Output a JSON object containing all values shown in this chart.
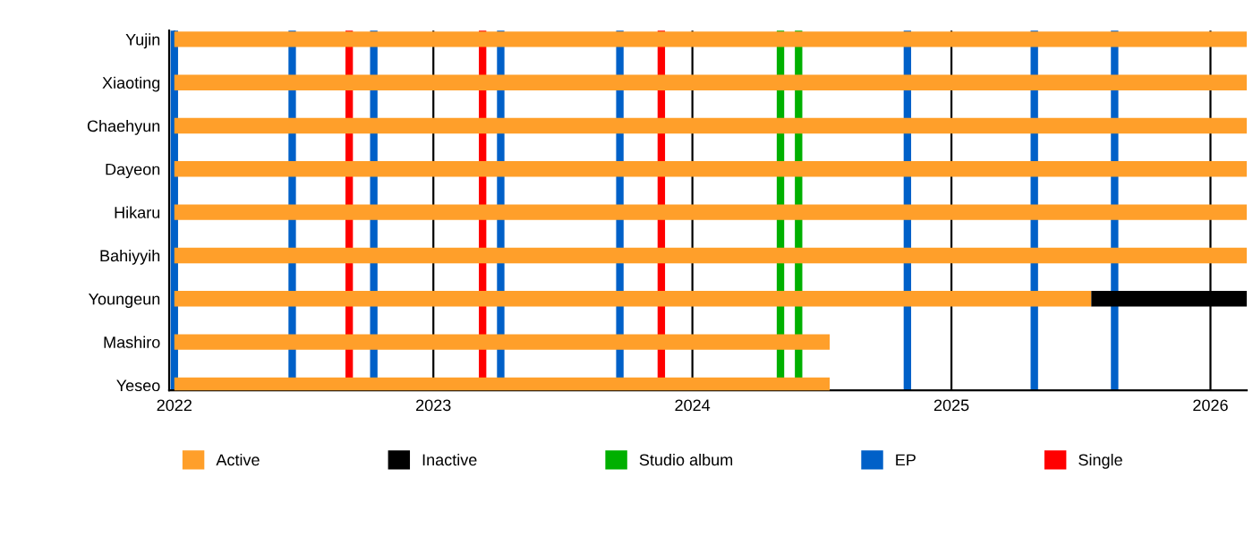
{
  "chart_data": {
    "type": "bar",
    "orientation": "horizontal",
    "categories": [
      "Yujin",
      "Xiaoting",
      "Chaehyun",
      "Dayeon",
      "Hikaru",
      "Bahiyyih",
      "Youngeun",
      "Mashiro",
      "Yeseo"
    ],
    "series": [
      {
        "name": "Active",
        "color": "#ff9f2a",
        "base": [
          2022.0,
          2022.0,
          2022.0,
          2022.0,
          2022.0,
          2022.0,
          2022.0,
          2022.0,
          2022.0
        ],
        "values": [
          4.14,
          4.14,
          4.14,
          4.14,
          4.14,
          4.14,
          3.54,
          2.53,
          2.53
        ]
      },
      {
        "name": "Inactive",
        "color": "#000000",
        "base": [
          null,
          null,
          null,
          null,
          null,
          null,
          2025.54,
          null,
          null
        ],
        "values": [
          null,
          null,
          null,
          null,
          null,
          null,
          0.6,
          null,
          null
        ]
      }
    ],
    "ref_lines": [
      {
        "axis": "x",
        "value": 2024.34,
        "label": "Studio album",
        "color": "#00b000"
      },
      {
        "axis": "x",
        "value": 2024.41,
        "color": "#00b000"
      },
      {
        "axis": "x",
        "value": 2022.0,
        "label": "EP",
        "color": "#0060c8"
      },
      {
        "axis": "x",
        "value": 2022.455,
        "color": "#0060c8"
      },
      {
        "axis": "x",
        "value": 2022.77,
        "color": "#0060c8"
      },
      {
        "axis": "x",
        "value": 2023.26,
        "color": "#0060c8"
      },
      {
        "axis": "x",
        "value": 2023.72,
        "color": "#0060c8"
      },
      {
        "axis": "x",
        "value": 2024.83,
        "color": "#0060c8"
      },
      {
        "axis": "x",
        "value": 2025.32,
        "color": "#0060c8"
      },
      {
        "axis": "x",
        "value": 2025.63,
        "color": "#0060c8"
      },
      {
        "axis": "x",
        "value": 2022.675,
        "label": "Single",
        "color": "#ff0000"
      },
      {
        "axis": "x",
        "value": 2023.19,
        "color": "#ff0000"
      },
      {
        "axis": "x",
        "value": 2023.88,
        "color": "#ff0000"
      }
    ],
    "xlim": [
      2021.98,
      2026.14
    ],
    "xticks": [
      2022,
      2023,
      2024,
      2025,
      2026
    ],
    "grid": "x",
    "legend": "bottom"
  }
}
